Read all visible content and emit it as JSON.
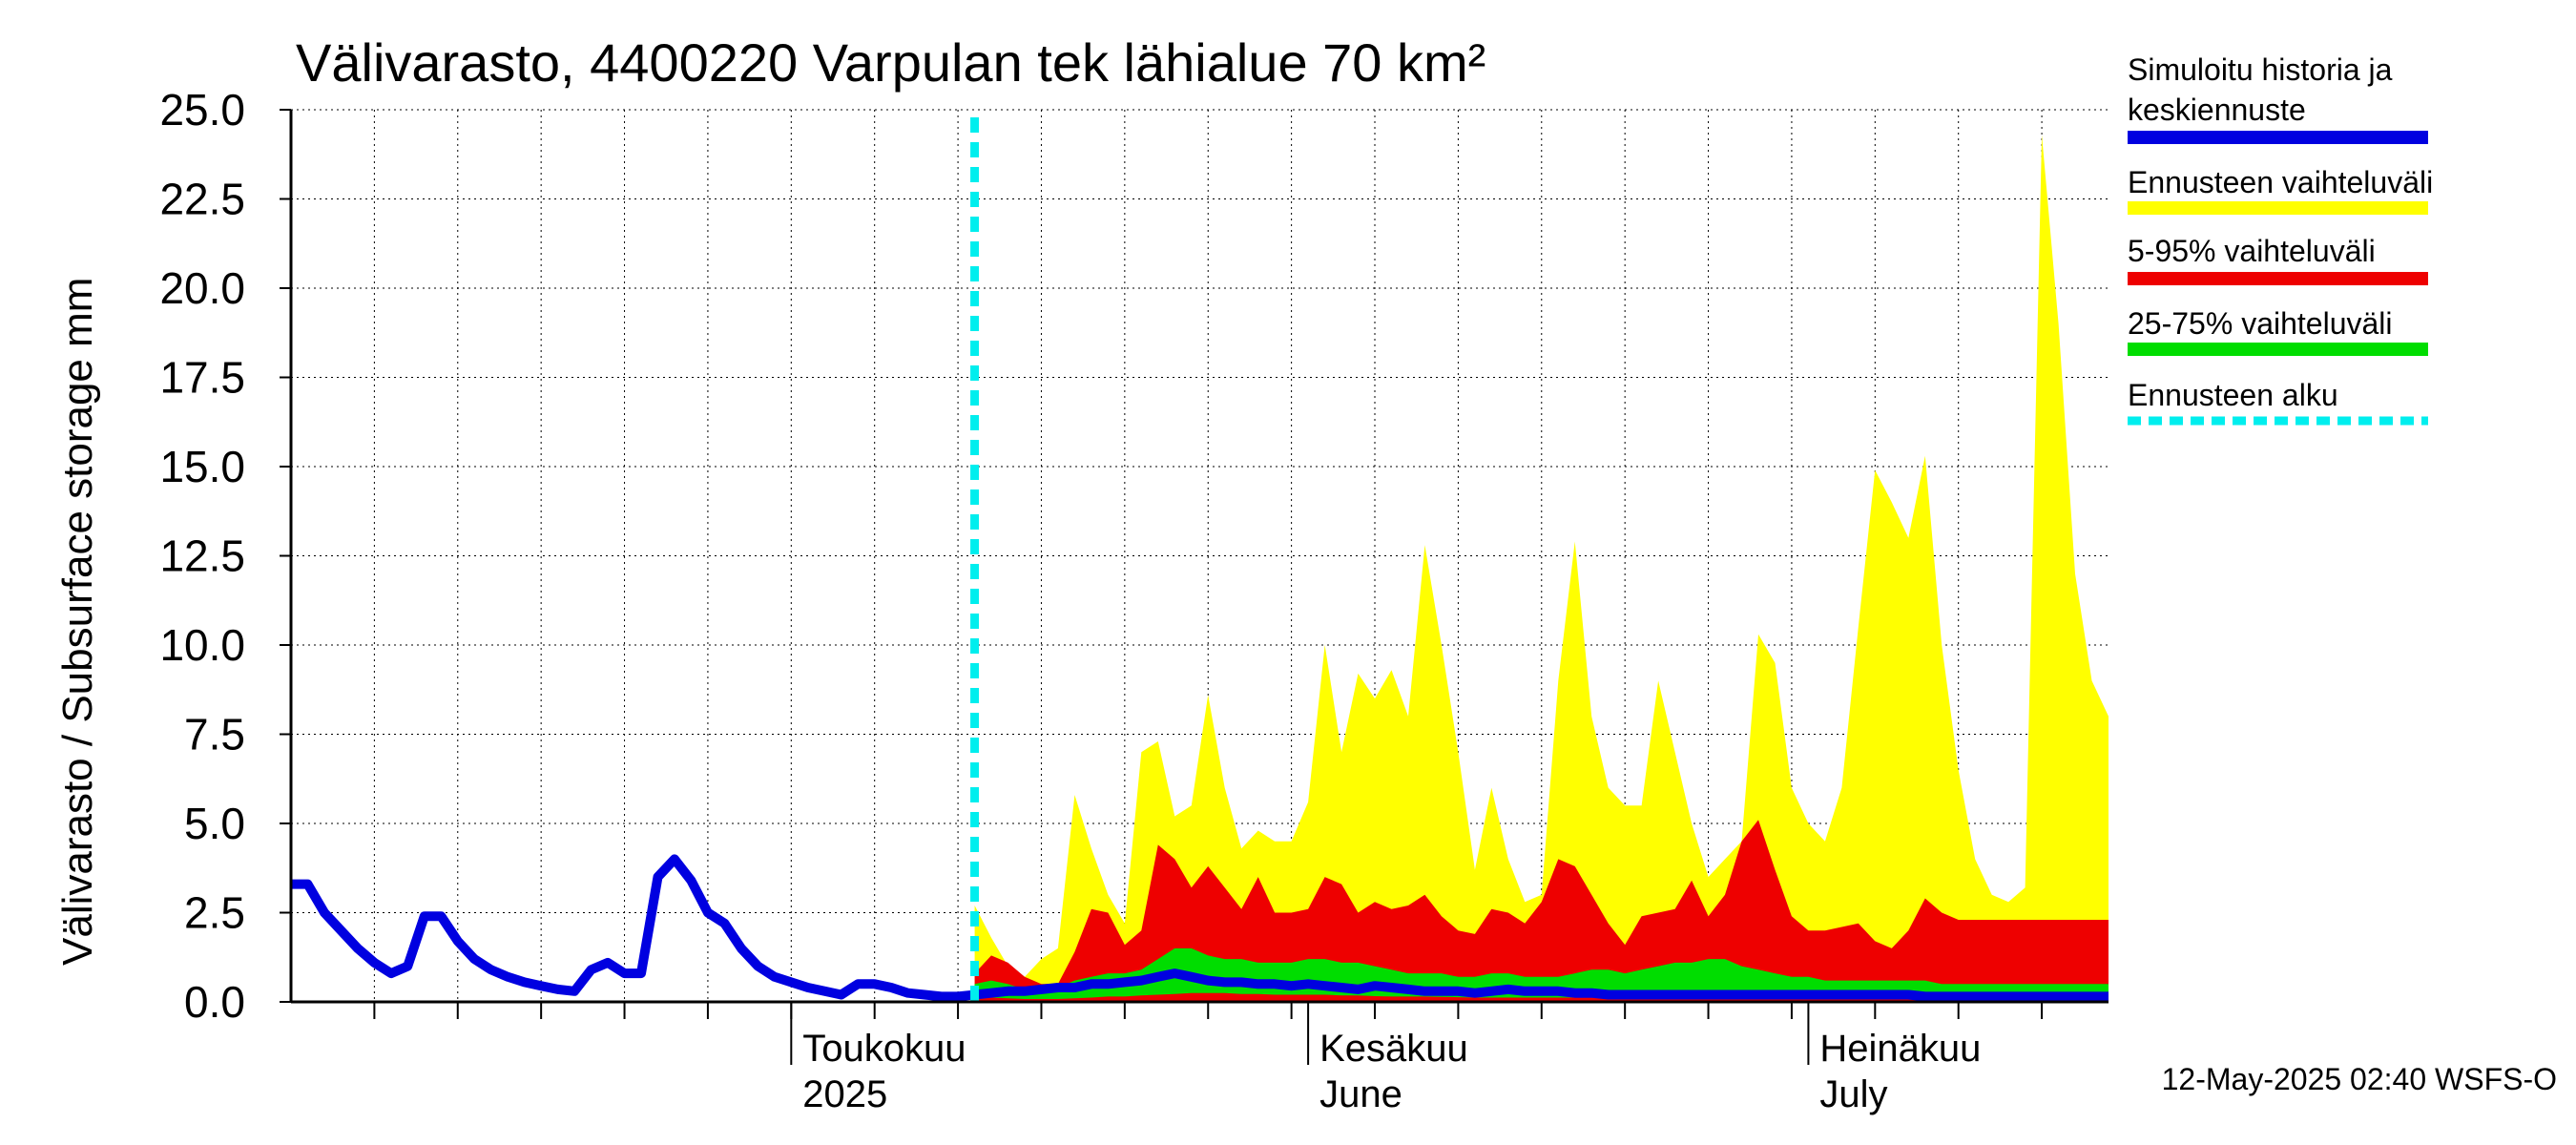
{
  "chart_data": {
    "type": "area",
    "title": "Välivarasto, 4400220 Varpulan tek lähialue 70 km²",
    "ylabel": "Välivarasto / Subsurface storage  mm",
    "xlabel": "",
    "ylim": [
      0,
      25
    ],
    "yticks": [
      "0.0",
      "2.5",
      "5.0",
      "7.5",
      "10.0",
      "12.5",
      "15.0",
      "17.5",
      "20.0",
      "22.5",
      "25.0"
    ],
    "x_range_days": [
      -30,
      79
    ],
    "x_unit": "days relative to 2025-05-01",
    "x_labels": [
      {
        "day": 0,
        "line1": "Toukokuu",
        "line2": "2025"
      },
      {
        "day": 31,
        "line1": "Kesäkuu",
        "line2": "June"
      },
      {
        "day": 61,
        "line1": "Heinäkuu",
        "line2": "July"
      }
    ],
    "forecast_start_day": 11,
    "footer": "12-May-2025 02:40 WSFS-O",
    "colors": {
      "history": "#0000e0",
      "full_range": "#ffff00",
      "p5_95": "#ee0000",
      "p25_75": "#00dd00",
      "forecast_start": "#00eeee"
    },
    "legend": [
      {
        "label_lines": [
          "Simuloitu historia ja",
          "keskiennuste"
        ],
        "key": "history",
        "dashed": false
      },
      {
        "label_lines": [
          "Ennusteen vaihteluväli"
        ],
        "key": "full_range",
        "dashed": false
      },
      {
        "label_lines": [
          "5-95% vaihteluväli"
        ],
        "key": "p5_95",
        "dashed": false
      },
      {
        "label_lines": [
          "25-75% vaihteluväli"
        ],
        "key": "p25_75",
        "dashed": false
      },
      {
        "label_lines": [
          "Ennusteen alku"
        ],
        "key": "forecast_start",
        "dashed": true
      }
    ],
    "series": [
      {
        "name": "Simuloitu historia ja keskiennuste",
        "x": [
          -30,
          -29,
          -28,
          -27,
          -26,
          -25,
          -24,
          -23,
          -22,
          -21,
          -20,
          -19,
          -18,
          -17,
          -16,
          -15,
          -14,
          -13,
          -12,
          -11,
          -10,
          -9,
          -8,
          -7,
          -6,
          -5,
          -4,
          -3,
          -2,
          -1,
          0,
          1,
          2,
          3,
          4,
          5,
          6,
          7,
          8,
          9,
          10,
          11,
          12,
          13,
          14,
          15,
          16,
          17,
          18,
          19,
          20,
          21,
          22,
          23,
          24,
          25,
          26,
          27,
          28,
          29,
          30,
          31,
          32,
          33,
          34,
          35,
          36,
          37,
          38,
          39,
          40,
          41,
          42,
          43,
          44,
          45,
          46,
          47,
          48,
          49,
          50,
          51,
          52,
          53,
          54,
          55,
          56,
          57,
          58,
          59,
          60,
          61,
          62,
          63,
          64,
          65,
          66,
          67,
          68,
          69,
          70,
          71,
          72,
          73,
          74,
          75,
          76,
          77,
          78,
          79
        ],
        "y": [
          3.3,
          3.3,
          2.5,
          2.0,
          1.5,
          1.1,
          0.8,
          1.0,
          2.4,
          2.4,
          1.7,
          1.2,
          0.9,
          0.7,
          0.55,
          0.45,
          0.35,
          0.3,
          0.9,
          1.1,
          0.8,
          0.8,
          3.5,
          4.0,
          3.4,
          2.5,
          2.2,
          1.5,
          1.0,
          0.7,
          0.55,
          0.4,
          0.3,
          0.2,
          0.5,
          0.5,
          0.4,
          0.25,
          0.2,
          0.15,
          0.15,
          0.2,
          0.25,
          0.3,
          0.3,
          0.35,
          0.4,
          0.4,
          0.5,
          0.5,
          0.55,
          0.6,
          0.7,
          0.8,
          0.7,
          0.6,
          0.55,
          0.55,
          0.5,
          0.5,
          0.45,
          0.5,
          0.45,
          0.4,
          0.35,
          0.45,
          0.4,
          0.35,
          0.3,
          0.3,
          0.3,
          0.25,
          0.3,
          0.35,
          0.3,
          0.3,
          0.3,
          0.25,
          0.25,
          0.2,
          0.2,
          0.2,
          0.2,
          0.2,
          0.2,
          0.2,
          0.2,
          0.2,
          0.2,
          0.2,
          0.2,
          0.2,
          0.2,
          0.2,
          0.2,
          0.2,
          0.2,
          0.2,
          0.15,
          0.15,
          0.15,
          0.15,
          0.15,
          0.15,
          0.15,
          0.15,
          0.15,
          0.15,
          0.15,
          0.15
        ]
      },
      {
        "name": "Ennusteen vaihteluväli (max)",
        "x": [
          11,
          12,
          13,
          14,
          15,
          16,
          17,
          18,
          19,
          20,
          21,
          22,
          23,
          24,
          25,
          26,
          27,
          28,
          29,
          30,
          31,
          32,
          33,
          34,
          35,
          36,
          37,
          38,
          39,
          40,
          41,
          42,
          43,
          44,
          45,
          46,
          47,
          48,
          49,
          50,
          51,
          52,
          53,
          54,
          55,
          56,
          57,
          58,
          59,
          60,
          61,
          62,
          63,
          64,
          65,
          66,
          67,
          68,
          69,
          70,
          71,
          72,
          73,
          74,
          75,
          76,
          77,
          78,
          79
        ],
        "y": [
          2.7,
          1.8,
          1.0,
          0.7,
          1.2,
          1.5,
          5.8,
          4.3,
          3.0,
          2.2,
          7.0,
          7.3,
          5.2,
          5.5,
          8.6,
          6.0,
          4.3,
          4.8,
          4.5,
          4.5,
          5.6,
          10.0,
          7.0,
          9.2,
          8.5,
          9.3,
          8.0,
          12.8,
          10.0,
          7.0,
          3.7,
          6.0,
          4.0,
          2.8,
          3.0,
          9.0,
          12.9,
          8.0,
          6.0,
          5.5,
          5.5,
          9.0,
          7.0,
          5.0,
          3.5,
          4.0,
          4.5,
          10.3,
          9.5,
          6.0,
          5.0,
          4.5,
          6.0,
          10.5,
          14.9,
          14.0,
          13.0,
          15.3,
          10.0,
          6.5,
          4.0,
          3.0,
          2.8,
          3.2,
          24.3,
          19.0,
          12.0,
          9.0,
          8.0
        ]
      },
      {
        "name": "5-95% vaihteluväli (p95)",
        "x": [
          11,
          12,
          13,
          14,
          15,
          16,
          17,
          18,
          19,
          20,
          21,
          22,
          23,
          24,
          25,
          26,
          27,
          28,
          29,
          30,
          31,
          32,
          33,
          34,
          35,
          36,
          37,
          38,
          39,
          40,
          41,
          42,
          43,
          44,
          45,
          46,
          47,
          48,
          49,
          50,
          51,
          52,
          53,
          54,
          55,
          56,
          57,
          58,
          59,
          60,
          61,
          62,
          63,
          64,
          65,
          66,
          67,
          68,
          69,
          70,
          71,
          72,
          73,
          74,
          75,
          76,
          77,
          78,
          79
        ],
        "y": [
          0.8,
          1.3,
          1.1,
          0.7,
          0.5,
          0.5,
          1.4,
          2.6,
          2.5,
          1.6,
          2.0,
          4.4,
          4.0,
          3.2,
          3.8,
          3.2,
          2.6,
          3.5,
          2.5,
          2.5,
          2.6,
          3.5,
          3.3,
          2.5,
          2.8,
          2.6,
          2.7,
          3.0,
          2.4,
          2.0,
          1.9,
          2.6,
          2.5,
          2.2,
          2.8,
          4.0,
          3.8,
          3.0,
          2.2,
          1.6,
          2.4,
          2.5,
          2.6,
          3.4,
          2.4,
          3.0,
          4.5,
          5.1,
          3.7,
          2.4,
          2.0,
          2.0,
          2.1,
          2.2,
          1.7,
          1.5,
          2.0,
          2.9,
          2.5,
          2.3,
          2.3,
          2.3,
          2.3,
          2.3,
          2.3,
          2.3,
          2.3,
          2.3,
          2.3
        ]
      },
      {
        "name": "25-75% vaihteluväli (p75)",
        "x": [
          11,
          12,
          13,
          14,
          15,
          16,
          17,
          18,
          19,
          20,
          21,
          22,
          23,
          24,
          25,
          26,
          27,
          28,
          29,
          30,
          31,
          32,
          33,
          34,
          35,
          36,
          37,
          38,
          39,
          40,
          41,
          42,
          43,
          44,
          45,
          46,
          47,
          48,
          49,
          50,
          51,
          52,
          53,
          54,
          55,
          56,
          57,
          58,
          59,
          60,
          61,
          62,
          63,
          64,
          65,
          66,
          67,
          68,
          69,
          70,
          71,
          72,
          73,
          74,
          75,
          76,
          77,
          78,
          79
        ],
        "y": [
          0.5,
          0.6,
          0.5,
          0.35,
          0.3,
          0.4,
          0.6,
          0.7,
          0.8,
          0.8,
          0.9,
          1.2,
          1.5,
          1.5,
          1.3,
          1.2,
          1.2,
          1.1,
          1.1,
          1.1,
          1.2,
          1.2,
          1.1,
          1.1,
          1.0,
          0.9,
          0.8,
          0.8,
          0.8,
          0.7,
          0.7,
          0.8,
          0.8,
          0.7,
          0.7,
          0.7,
          0.8,
          0.9,
          0.9,
          0.8,
          0.9,
          1.0,
          1.1,
          1.1,
          1.2,
          1.2,
          1.0,
          0.9,
          0.8,
          0.7,
          0.7,
          0.6,
          0.6,
          0.6,
          0.6,
          0.6,
          0.6,
          0.6,
          0.5,
          0.5,
          0.5,
          0.5,
          0.5,
          0.5,
          0.5,
          0.5,
          0.5,
          0.5,
          0.5
        ]
      },
      {
        "name": "25-75% vaihteluväli (p25)",
        "x": [
          11,
          12,
          13,
          14,
          15,
          16,
          17,
          18,
          19,
          20,
          21,
          22,
          23,
          24,
          25,
          26,
          27,
          28,
          29,
          30,
          31,
          32,
          33,
          34,
          35,
          36,
          37,
          38,
          39,
          40,
          41,
          42,
          43,
          44,
          45,
          46,
          47,
          48,
          49,
          50,
          51,
          52,
          53,
          54,
          55,
          56,
          57,
          58,
          59,
          60,
          61,
          62,
          63,
          64,
          65,
          66,
          67,
          68,
          69,
          70,
          71,
          72,
          73,
          74,
          75,
          76,
          77,
          78,
          79
        ],
        "y": [
          0.1,
          0.12,
          0.1,
          0.08,
          0.08,
          0.08,
          0.1,
          0.12,
          0.15,
          0.15,
          0.18,
          0.2,
          0.22,
          0.25,
          0.25,
          0.25,
          0.22,
          0.22,
          0.2,
          0.2,
          0.2,
          0.2,
          0.18,
          0.18,
          0.16,
          0.15,
          0.15,
          0.15,
          0.14,
          0.13,
          0.12,
          0.12,
          0.12,
          0.12,
          0.12,
          0.12,
          0.12,
          0.12,
          0.12,
          0.1,
          0.1,
          0.1,
          0.1,
          0.1,
          0.1,
          0.1,
          0.1,
          0.1,
          0.1,
          0.1,
          0.08,
          0.08,
          0.08,
          0.08,
          0.08,
          0.08,
          0.08,
          0.08,
          0.08,
          0.08,
          0.08,
          0.08,
          0.08,
          0.08,
          0.08,
          0.08,
          0.08,
          0.08,
          0.08
        ]
      },
      {
        "name": "5-95% vaihteluväli (p5)",
        "x": [
          11,
          79
        ],
        "y": [
          0.03,
          0.03
        ]
      }
    ]
  }
}
